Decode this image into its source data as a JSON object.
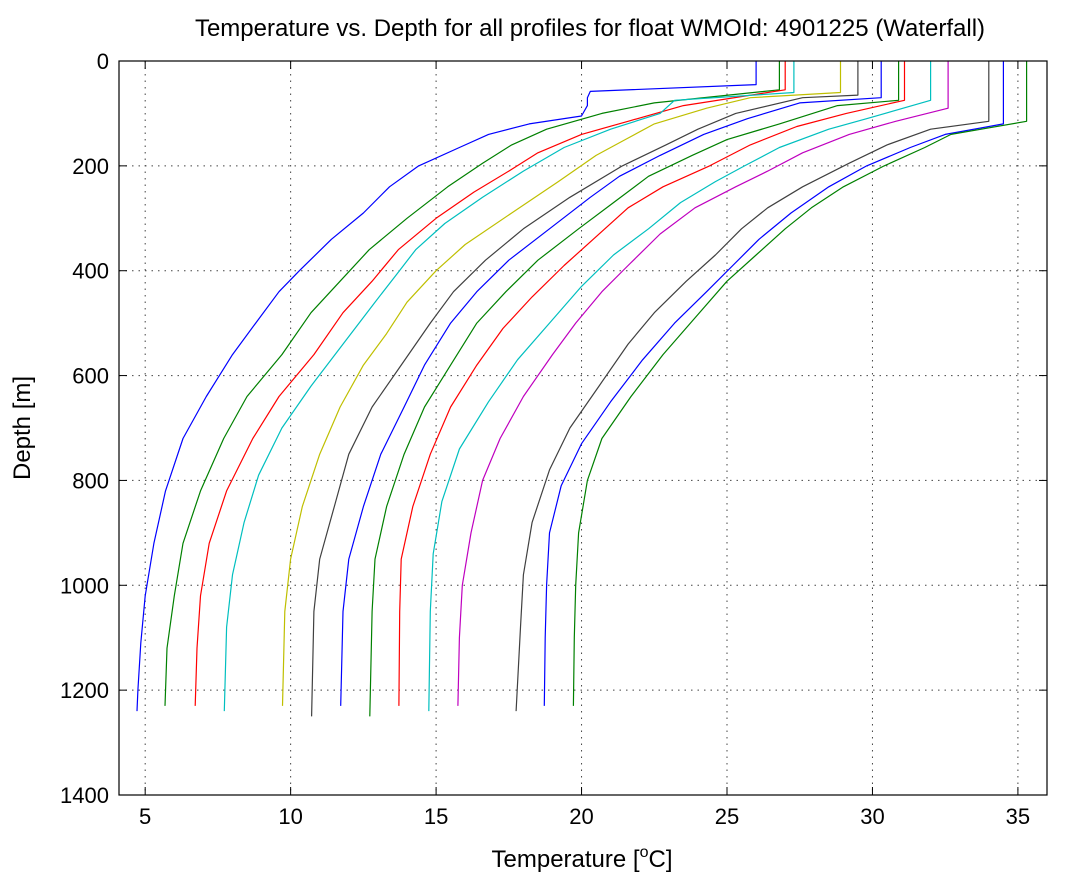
{
  "chart_data": {
    "type": "line",
    "title": "Temperature vs. Depth for all profiles for float WMOId: 4901225 (Waterfall)",
    "xlabel_main": "Temperature [",
    "xlabel_sup": "o",
    "xlabel_end": "C]",
    "ylabel": "Depth [m]",
    "xlim": [
      4.1,
      36.0
    ],
    "ylim": [
      0,
      1400
    ],
    "y_reversed": true,
    "grid": true,
    "x_ticks": [
      5,
      10,
      15,
      20,
      25,
      30,
      35
    ],
    "y_ticks": [
      0,
      200,
      400,
      600,
      800,
      1000,
      1200,
      1400
    ],
    "series": [
      {
        "color": "#0000ff",
        "values": [
          [
            26.0,
            0
          ],
          [
            26.0,
            45
          ],
          [
            20.3,
            58
          ],
          [
            20.2,
            70
          ],
          [
            20.2,
            85
          ],
          [
            20.0,
            105
          ],
          [
            18.2,
            120
          ],
          [
            16.8,
            140
          ],
          [
            15.8,
            165
          ],
          [
            14.4,
            200
          ],
          [
            13.4,
            240
          ],
          [
            12.5,
            290
          ],
          [
            11.4,
            340
          ],
          [
            10.3,
            400
          ],
          [
            9.6,
            440
          ],
          [
            8.8,
            500
          ],
          [
            8.0,
            560
          ],
          [
            7.1,
            640
          ],
          [
            6.3,
            720
          ],
          [
            5.7,
            820
          ],
          [
            5.3,
            920
          ],
          [
            5.0,
            1020
          ],
          [
            4.85,
            1110
          ],
          [
            4.75,
            1200
          ],
          [
            4.72,
            1240
          ]
        ]
      },
      {
        "color": "#008000",
        "values": [
          [
            26.8,
            0
          ],
          [
            26.8,
            55
          ],
          [
            22.5,
            80
          ],
          [
            20.7,
            100
          ],
          [
            18.8,
            130
          ],
          [
            17.6,
            160
          ],
          [
            16.6,
            195
          ],
          [
            15.4,
            240
          ],
          [
            14.0,
            300
          ],
          [
            12.7,
            360
          ],
          [
            11.7,
            420
          ],
          [
            10.7,
            480
          ],
          [
            9.7,
            560
          ],
          [
            8.5,
            640
          ],
          [
            7.7,
            720
          ],
          [
            6.9,
            820
          ],
          [
            6.3,
            920
          ],
          [
            6.0,
            1020
          ],
          [
            5.75,
            1120
          ],
          [
            5.68,
            1230
          ]
        ]
      },
      {
        "color": "#ff0000",
        "values": [
          [
            27.0,
            0
          ],
          [
            27.0,
            55
          ],
          [
            23.5,
            85
          ],
          [
            21.6,
            115
          ],
          [
            20.0,
            140
          ],
          [
            18.5,
            175
          ],
          [
            17.5,
            210
          ],
          [
            16.3,
            250
          ],
          [
            15.0,
            300
          ],
          [
            13.7,
            360
          ],
          [
            12.8,
            420
          ],
          [
            11.8,
            480
          ],
          [
            10.8,
            560
          ],
          [
            9.6,
            640
          ],
          [
            8.7,
            720
          ],
          [
            7.8,
            820
          ],
          [
            7.2,
            920
          ],
          [
            6.9,
            1020
          ],
          [
            6.78,
            1120
          ],
          [
            6.72,
            1230
          ]
        ]
      },
      {
        "color": "#00bfbf",
        "values": [
          [
            27.3,
            0
          ],
          [
            27.3,
            60
          ],
          [
            23.2,
            75
          ],
          [
            22.7,
            100
          ],
          [
            21.0,
            130
          ],
          [
            19.4,
            165
          ],
          [
            18.0,
            210
          ],
          [
            16.6,
            260
          ],
          [
            15.3,
            310
          ],
          [
            14.3,
            360
          ],
          [
            13.6,
            410
          ],
          [
            12.9,
            460
          ],
          [
            11.8,
            540
          ],
          [
            10.7,
            620
          ],
          [
            9.7,
            700
          ],
          [
            8.9,
            790
          ],
          [
            8.4,
            880
          ],
          [
            8.0,
            980
          ],
          [
            7.8,
            1080
          ],
          [
            7.72,
            1240
          ]
        ]
      },
      {
        "color": "#bfbf00",
        "values": [
          [
            28.9,
            0
          ],
          [
            28.9,
            60
          ],
          [
            25.8,
            70
          ],
          [
            24.3,
            90
          ],
          [
            22.5,
            120
          ],
          [
            21.5,
            150
          ],
          [
            20.5,
            180
          ],
          [
            19.2,
            230
          ],
          [
            17.6,
            290
          ],
          [
            16.0,
            350
          ],
          [
            15.0,
            400
          ],
          [
            14.0,
            460
          ],
          [
            13.3,
            520
          ],
          [
            12.5,
            580
          ],
          [
            11.7,
            660
          ],
          [
            11.0,
            750
          ],
          [
            10.4,
            850
          ],
          [
            10.0,
            950
          ],
          [
            9.8,
            1050
          ],
          [
            9.72,
            1230
          ]
        ]
      },
      {
        "color": "#404040",
        "values": [
          [
            29.5,
            0
          ],
          [
            29.5,
            65
          ],
          [
            27.6,
            70
          ],
          [
            25.3,
            100
          ],
          [
            24.0,
            130
          ],
          [
            22.9,
            160
          ],
          [
            21.4,
            200
          ],
          [
            19.6,
            260
          ],
          [
            18.0,
            320
          ],
          [
            16.7,
            380
          ],
          [
            15.6,
            440
          ],
          [
            14.8,
            500
          ],
          [
            13.8,
            580
          ],
          [
            12.8,
            660
          ],
          [
            12.0,
            750
          ],
          [
            11.5,
            850
          ],
          [
            11.0,
            950
          ],
          [
            10.8,
            1050
          ],
          [
            10.72,
            1250
          ]
        ]
      },
      {
        "color": "#0000ff",
        "values": [
          [
            30.3,
            0
          ],
          [
            30.3,
            70
          ],
          [
            27.5,
            80
          ],
          [
            25.7,
            110
          ],
          [
            24.2,
            140
          ],
          [
            22.7,
            180
          ],
          [
            21.3,
            220
          ],
          [
            20.3,
            260
          ],
          [
            18.9,
            320
          ],
          [
            17.5,
            380
          ],
          [
            16.4,
            440
          ],
          [
            15.5,
            500
          ],
          [
            14.6,
            580
          ],
          [
            13.9,
            660
          ],
          [
            13.1,
            750
          ],
          [
            12.5,
            850
          ],
          [
            12.0,
            950
          ],
          [
            11.8,
            1050
          ],
          [
            11.72,
            1230
          ]
        ]
      },
      {
        "color": "#008000",
        "values": [
          [
            30.9,
            0
          ],
          [
            30.9,
            75
          ],
          [
            28.8,
            85
          ],
          [
            26.8,
            120
          ],
          [
            25.0,
            150
          ],
          [
            23.8,
            180
          ],
          [
            22.3,
            220
          ],
          [
            21.1,
            270
          ],
          [
            19.9,
            320
          ],
          [
            18.5,
            380
          ],
          [
            17.4,
            440
          ],
          [
            16.4,
            500
          ],
          [
            15.5,
            580
          ],
          [
            14.6,
            660
          ],
          [
            13.9,
            750
          ],
          [
            13.3,
            850
          ],
          [
            12.9,
            950
          ],
          [
            12.8,
            1050
          ],
          [
            12.72,
            1250
          ]
        ]
      },
      {
        "color": "#ff0000",
        "values": [
          [
            31.1,
            0
          ],
          [
            31.1,
            75
          ],
          [
            29.1,
            100
          ],
          [
            27.4,
            125
          ],
          [
            25.8,
            160
          ],
          [
            24.4,
            200
          ],
          [
            22.8,
            240
          ],
          [
            21.6,
            280
          ],
          [
            20.4,
            340
          ],
          [
            19.4,
            390
          ],
          [
            18.3,
            450
          ],
          [
            17.3,
            510
          ],
          [
            16.4,
            580
          ],
          [
            15.5,
            660
          ],
          [
            14.8,
            750
          ],
          [
            14.2,
            850
          ],
          [
            13.8,
            950
          ],
          [
            13.75,
            1050
          ],
          [
            13.72,
            1230
          ]
        ]
      },
      {
        "color": "#00bfbf",
        "values": [
          [
            32.0,
            0
          ],
          [
            32.0,
            75
          ],
          [
            29.8,
            110
          ],
          [
            28.5,
            130
          ],
          [
            26.8,
            165
          ],
          [
            25.6,
            200
          ],
          [
            24.6,
            230
          ],
          [
            23.4,
            270
          ],
          [
            22.3,
            320
          ],
          [
            21.1,
            370
          ],
          [
            20.0,
            430
          ],
          [
            18.9,
            500
          ],
          [
            17.8,
            570
          ],
          [
            16.8,
            650
          ],
          [
            15.8,
            740
          ],
          [
            15.2,
            840
          ],
          [
            14.9,
            940
          ],
          [
            14.8,
            1050
          ],
          [
            14.75,
            1240
          ]
        ]
      },
      {
        "color": "#bf00bf",
        "values": [
          [
            32.6,
            0
          ],
          [
            32.6,
            90
          ],
          [
            30.8,
            115
          ],
          [
            29.2,
            140
          ],
          [
            27.6,
            175
          ],
          [
            26.4,
            210
          ],
          [
            25.3,
            240
          ],
          [
            23.9,
            280
          ],
          [
            22.7,
            330
          ],
          [
            21.6,
            390
          ],
          [
            20.7,
            440
          ],
          [
            19.8,
            500
          ],
          [
            19.0,
            560
          ],
          [
            18.0,
            640
          ],
          [
            17.2,
            720
          ],
          [
            16.6,
            800
          ],
          [
            16.2,
            900
          ],
          [
            15.9,
            1000
          ],
          [
            15.8,
            1100
          ],
          [
            15.75,
            1230
          ]
        ]
      },
      {
        "color": "#404040",
        "values": [
          [
            34.0,
            0
          ],
          [
            34.0,
            115
          ],
          [
            32.0,
            130
          ],
          [
            30.5,
            160
          ],
          [
            29.2,
            195
          ],
          [
            27.6,
            240
          ],
          [
            26.4,
            280
          ],
          [
            25.5,
            320
          ],
          [
            24.6,
            370
          ],
          [
            23.6,
            420
          ],
          [
            22.5,
            480
          ],
          [
            21.6,
            540
          ],
          [
            20.6,
            620
          ],
          [
            19.6,
            700
          ],
          [
            18.9,
            780
          ],
          [
            18.3,
            880
          ],
          [
            18.0,
            980
          ],
          [
            17.9,
            1080
          ],
          [
            17.75,
            1240
          ]
        ]
      },
      {
        "color": "#0000ff",
        "values": [
          [
            34.5,
            0
          ],
          [
            34.5,
            120
          ],
          [
            32.5,
            140
          ],
          [
            31.3,
            165
          ],
          [
            29.8,
            200
          ],
          [
            28.5,
            240
          ],
          [
            27.2,
            290
          ],
          [
            26.1,
            340
          ],
          [
            25.2,
            390
          ],
          [
            24.3,
            440
          ],
          [
            23.2,
            500
          ],
          [
            22.1,
            570
          ],
          [
            21.0,
            650
          ],
          [
            20.0,
            730
          ],
          [
            19.3,
            810
          ],
          [
            18.9,
            900
          ],
          [
            18.8,
            1000
          ],
          [
            18.75,
            1100
          ],
          [
            18.72,
            1230
          ]
        ]
      },
      {
        "color": "#008000",
        "values": [
          [
            35.3,
            0
          ],
          [
            35.3,
            115
          ],
          [
            32.7,
            140
          ],
          [
            31.8,
            165
          ],
          [
            30.4,
            200
          ],
          [
            29.0,
            240
          ],
          [
            27.9,
            280
          ],
          [
            27.0,
            320
          ],
          [
            26.0,
            370
          ],
          [
            25.0,
            420
          ],
          [
            23.9,
            490
          ],
          [
            22.8,
            560
          ],
          [
            21.7,
            640
          ],
          [
            20.7,
            720
          ],
          [
            20.2,
            800
          ],
          [
            19.9,
            900
          ],
          [
            19.8,
            1000
          ],
          [
            19.75,
            1100
          ],
          [
            19.72,
            1230
          ]
        ]
      }
    ]
  }
}
